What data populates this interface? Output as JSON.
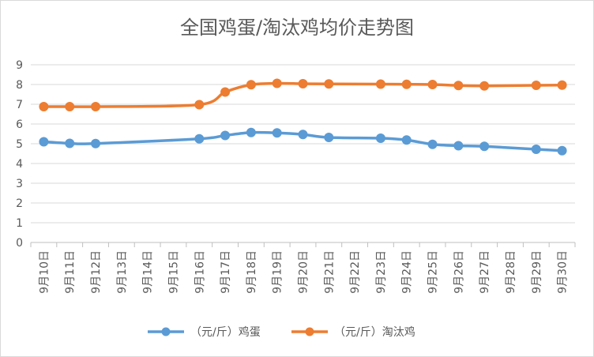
{
  "chart_data": {
    "type": "line",
    "title": "全国鸡蛋/淘汰鸡均价走势图",
    "categories": [
      "9月10日",
      "9月11日",
      "9月12日",
      "9月13日",
      "9月14日",
      "9月15日",
      "9月16日",
      "9月17日",
      "9月18日",
      "9月19日",
      "9月20日",
      "9月21日",
      "9月22日",
      "9月23日",
      "9月24日",
      "9月25日",
      "9月26日",
      "9月27日",
      "9月28日",
      "9月29日",
      "9月30日"
    ],
    "series": [
      {
        "name": "（元/斤）鸡蛋",
        "color": "#5b9bd5",
        "values": [
          5.1,
          5.02,
          5.01,
          null,
          null,
          null,
          5.25,
          5.42,
          5.57,
          5.55,
          5.47,
          5.32,
          null,
          5.28,
          5.19,
          4.97,
          4.9,
          4.87,
          null,
          4.72,
          4.65
        ]
      },
      {
        "name": "（元/斤）淘汰鸡",
        "color": "#ed7d31",
        "values": [
          6.88,
          6.88,
          6.88,
          null,
          null,
          null,
          6.98,
          7.62,
          7.99,
          8.06,
          8.04,
          8.03,
          null,
          8.02,
          8.01,
          8.0,
          7.95,
          7.93,
          null,
          7.96,
          7.97
        ]
      }
    ],
    "ylim": [
      0,
      9
    ],
    "yticks": [
      0,
      1,
      2,
      3,
      4,
      5,
      6,
      7,
      8,
      9
    ],
    "xlabel": "",
    "ylabel": "",
    "grid": true,
    "legend": "bottom"
  }
}
